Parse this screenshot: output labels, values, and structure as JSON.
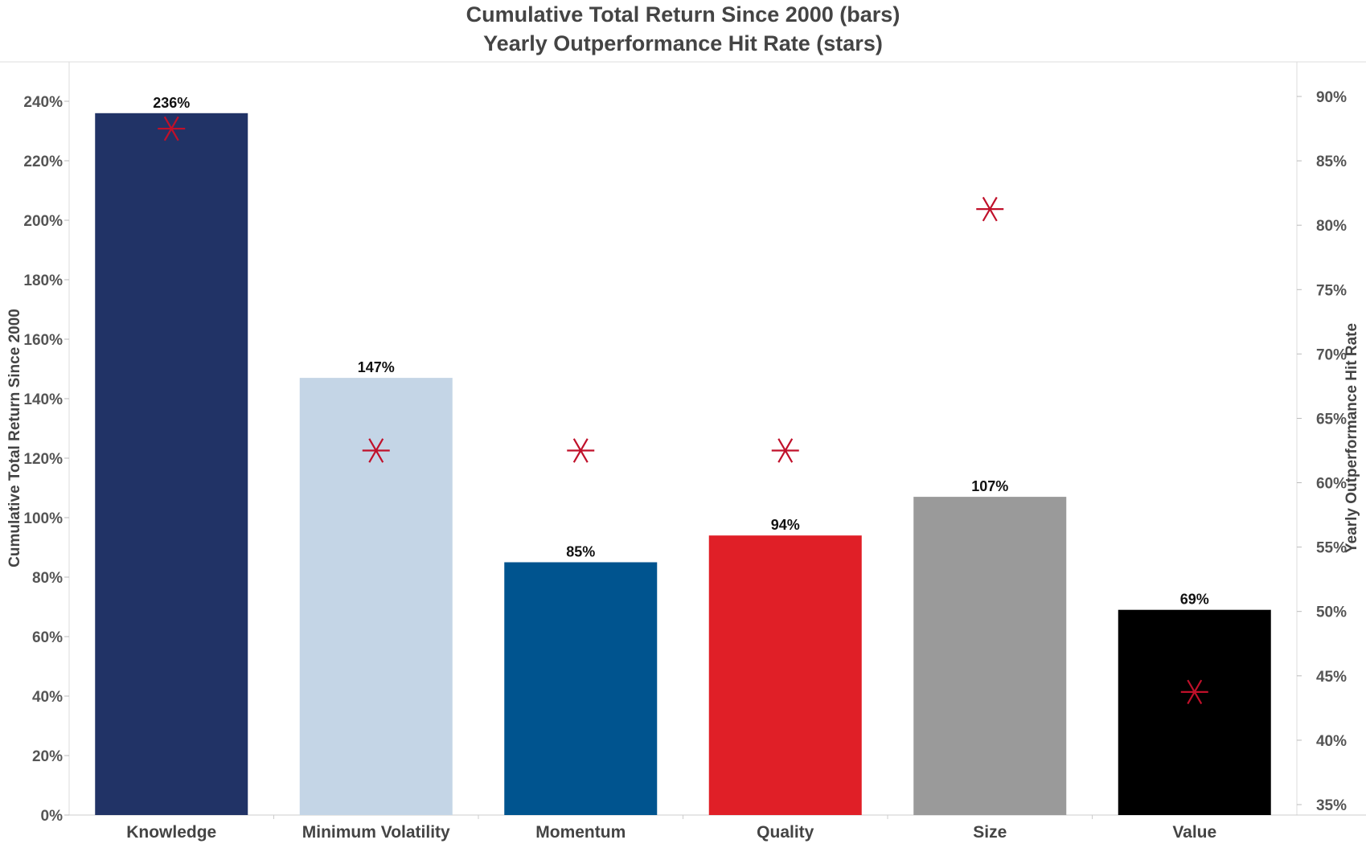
{
  "chart_data": {
    "type": "bar",
    "title": "Cumulative Total Return Since 2000 (bars)",
    "subtitle": "Yearly Outperformance Hit Rate (stars)",
    "categories": [
      "Knowledge",
      "Minimum Volatility",
      "Momentum",
      "Quality",
      "Size",
      "Value"
    ],
    "series": [
      {
        "name": "Cumulative Total Return Since 2000",
        "type": "bar",
        "axis": "left",
        "values": [
          236,
          147,
          85,
          94,
          107,
          69
        ],
        "labels": [
          "236%",
          "147%",
          "85%",
          "94%",
          "107%",
          "69%"
        ],
        "colors": [
          "#213366",
          "#c4d5e6",
          "#00548f",
          "#e01f27",
          "#9a9a9a",
          "#000000"
        ]
      },
      {
        "name": "Yearly Outperformance Hit Rate",
        "type": "scatter",
        "marker": "star",
        "axis": "right",
        "values": [
          87.5,
          62.5,
          62.5,
          62.5,
          81.25,
          43.75
        ],
        "color": "#c0102a"
      }
    ],
    "ylabel": "Cumulative Total Return Since 2000",
    "ylim": [
      0,
      240
    ],
    "yticks": [
      0,
      20,
      40,
      60,
      80,
      100,
      120,
      140,
      160,
      180,
      200,
      220,
      240
    ],
    "ytick_labels": [
      "0%",
      "20%",
      "40%",
      "60%",
      "80%",
      "100%",
      "120%",
      "140%",
      "160%",
      "180%",
      "200%",
      "220%",
      "240%"
    ],
    "y2label": "Yearly Outperformance Hit Rate",
    "y2lim": [
      35,
      90
    ],
    "y2ticks": [
      35,
      40,
      45,
      50,
      55,
      60,
      65,
      70,
      75,
      80,
      85,
      90
    ],
    "y2tick_labels": [
      "35%",
      "40%",
      "45%",
      "50%",
      "55%",
      "60%",
      "65%",
      "70%",
      "75%",
      "80%",
      "85%",
      "90%"
    ],
    "grid": false,
    "legend": "none"
  }
}
